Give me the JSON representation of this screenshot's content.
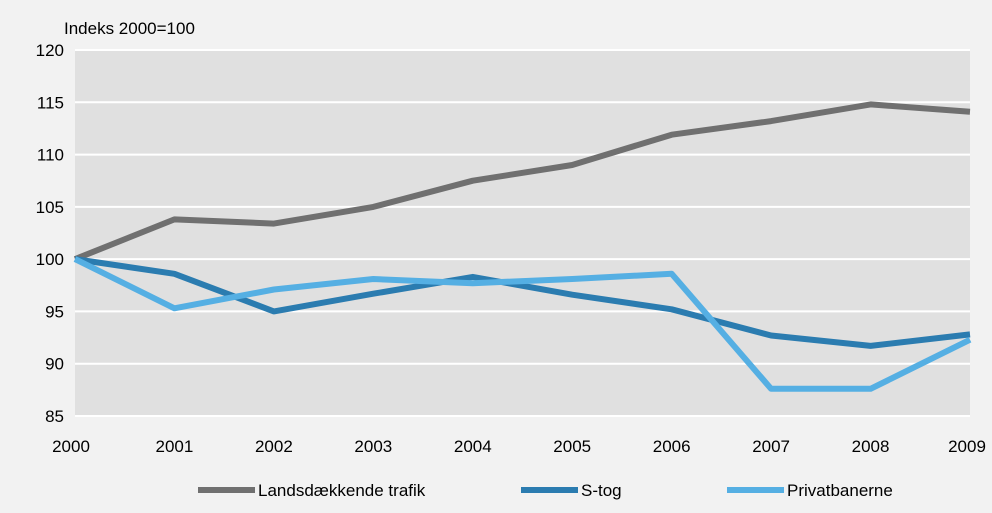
{
  "chart_data": {
    "type": "line",
    "unit_label": "Indeks 2000=100",
    "x": [
      "2000",
      "2001",
      "2002",
      "2003",
      "2004",
      "2005",
      "2006",
      "2007",
      "2008",
      "2009"
    ],
    "ylim": [
      85,
      120
    ],
    "yticks": [
      85,
      90,
      95,
      100,
      105,
      110,
      115,
      120
    ],
    "grid": "horizontal",
    "legend_position": "bottom",
    "series": [
      {
        "name": "Landsdækkende trafik",
        "color": "#707070",
        "values": [
          100,
          103.8,
          103.4,
          105.0,
          107.5,
          109.0,
          111.9,
          113.2,
          114.8,
          114.1
        ]
      },
      {
        "name": "S-tog",
        "color": "#2b7cb0",
        "values": [
          100,
          98.6,
          95.0,
          96.7,
          98.3,
          96.6,
          95.2,
          92.7,
          91.7,
          92.8
        ]
      },
      {
        "name": "Privatbanerne",
        "color": "#55afe3",
        "values": [
          100,
          95.3,
          97.1,
          98.1,
          97.7,
          98.1,
          98.6,
          87.6,
          87.6,
          92.3
        ]
      }
    ]
  },
  "style": {
    "frame_bg": "#f2f2f2",
    "plot_bg": "#e0e0e0",
    "grid_color": "#ffffff"
  }
}
